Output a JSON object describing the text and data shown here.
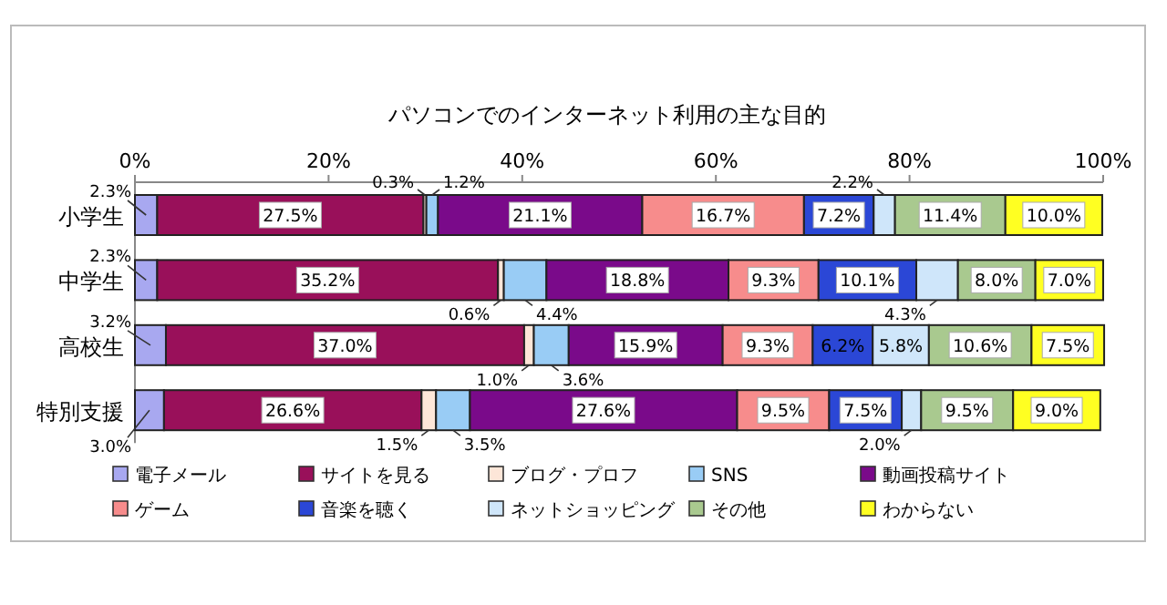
{
  "chart_data": {
    "type": "bar",
    "title": "パソコンでのインターネット利用の主な目的",
    "orientation": "horizontal",
    "stacked": true,
    "grid": false,
    "legend": "bottom",
    "categories": [
      "小学生",
      "中学生",
      "高校生",
      "特別支援"
    ],
    "xlim": [
      0,
      100
    ],
    "xticks": [
      {
        "value": 0,
        "label": "0%"
      },
      {
        "value": 20,
        "label": "20%"
      },
      {
        "value": 40,
        "label": "40%"
      },
      {
        "value": 60,
        "label": "60%"
      },
      {
        "value": 80,
        "label": "80%"
      },
      {
        "value": 100,
        "label": "100%"
      }
    ],
    "series": [
      {
        "name": "電子メール",
        "color": "#a8a8f0",
        "values": [
          2.3,
          2.3,
          3.2,
          3.0
        ],
        "value_labels": [
          "2.3%",
          "2.3%",
          "3.2%",
          "3.0%"
        ]
      },
      {
        "name": "サイトを見る",
        "color": "#99105a",
        "values": [
          27.5,
          35.2,
          37.0,
          26.6
        ],
        "value_labels": [
          "27.5%",
          "35.2%",
          "37.0%",
          "26.6%"
        ]
      },
      {
        "name": "ブログ・プロフ",
        "color": "#fde6d8",
        "values": [
          0.3,
          0.6,
          1.0,
          1.5
        ],
        "value_labels": [
          "0.3%",
          "0.6%",
          "1.0%",
          "1.5%"
        ]
      },
      {
        "name": "SNS",
        "color": "#99ccf5",
        "values": [
          1.2,
          4.4,
          3.6,
          3.5
        ],
        "value_labels": [
          "1.2%",
          "4.4%",
          "3.6%",
          "3.5%"
        ]
      },
      {
        "name": "動画投稿サイト",
        "color": "#7a0a8a",
        "values": [
          21.1,
          18.8,
          15.9,
          27.6
        ],
        "value_labels": [
          "21.1%",
          "18.8%",
          "15.9%",
          "27.6%"
        ]
      },
      {
        "name": "ゲーム",
        "color": "#f78c8c",
        "values": [
          16.7,
          9.3,
          9.3,
          9.5
        ],
        "value_labels": [
          "16.7%",
          "9.3%",
          "9.3%",
          "9.5%"
        ]
      },
      {
        "name": "音楽を聴く",
        "color": "#2b47d6",
        "values": [
          7.2,
          10.1,
          6.2,
          7.5
        ],
        "value_labels": [
          "7.2%",
          "10.1%",
          "6.2%",
          "7.5%"
        ]
      },
      {
        "name": "ネットショッピング",
        "color": "#cfe6fa",
        "values": [
          2.2,
          4.3,
          5.8,
          2.0
        ],
        "value_labels": [
          "2.2%",
          "4.3%",
          "5.8%",
          "2.0%"
        ]
      },
      {
        "name": "その他",
        "color": "#a9c98f",
        "values": [
          11.4,
          8.0,
          10.6,
          9.5
        ],
        "value_labels": [
          "11.4%",
          "8.0%",
          "10.6%",
          "9.5%"
        ]
      },
      {
        "name": "わからない",
        "color": "#ffff22",
        "values": [
          10.0,
          7.0,
          7.5,
          9.0
        ],
        "value_labels": [
          "10.0%",
          "7.0%",
          "7.5%",
          "9.0%"
        ]
      }
    ]
  }
}
